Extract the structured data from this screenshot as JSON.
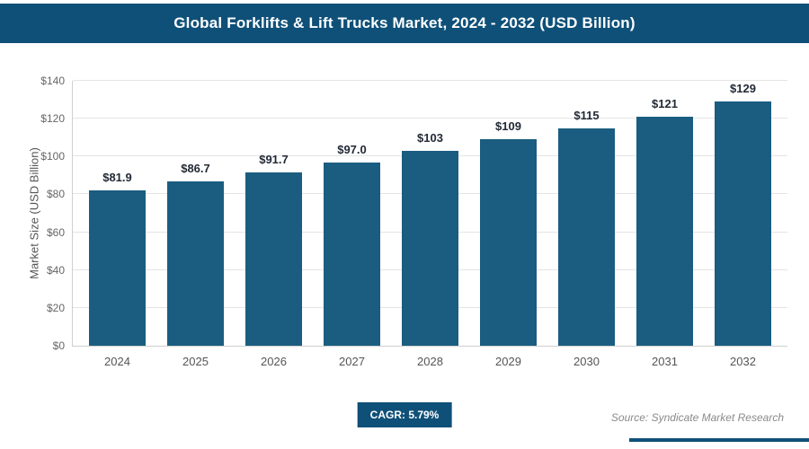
{
  "header": {
    "title": "Global Forklifts & Lift Trucks Market, 2024 - 2032 (USD Billion)"
  },
  "chart_data": {
    "type": "bar",
    "title": "Global Forklifts & Lift Trucks Market, 2024 - 2032 (USD Billion)",
    "categories": [
      "2024",
      "2025",
      "2026",
      "2027",
      "2028",
      "2029",
      "2030",
      "2031",
      "2032"
    ],
    "values": [
      81.9,
      86.7,
      91.7,
      97.0,
      103,
      109,
      115,
      121,
      129
    ],
    "value_labels": [
      "$81.9",
      "$86.7",
      "$91.7",
      "$97.0",
      "$103",
      "$109",
      "$115",
      "$121",
      "$129"
    ],
    "xlabel": "",
    "ylabel": "Market Size (USD Billion)",
    "ylim": [
      0,
      140
    ],
    "yticks": [
      0,
      20,
      40,
      60,
      80,
      100,
      120,
      140
    ],
    "ytick_labels": [
      "$0",
      "$20",
      "$40",
      "$60",
      "$80",
      "$100",
      "$120",
      "$140"
    ],
    "grid": true,
    "legend": false,
    "bar_color": "#1a5d80"
  },
  "footer": {
    "cagr_label": "CAGR: 5.79%",
    "source": "Source: Syndicate Market Research"
  },
  "colors": {
    "banner_bg": "#0f5078",
    "bar": "#1a5d80",
    "grid": "#e4e4e4",
    "value_label": "#222a35",
    "tick_label": "#666666"
  }
}
